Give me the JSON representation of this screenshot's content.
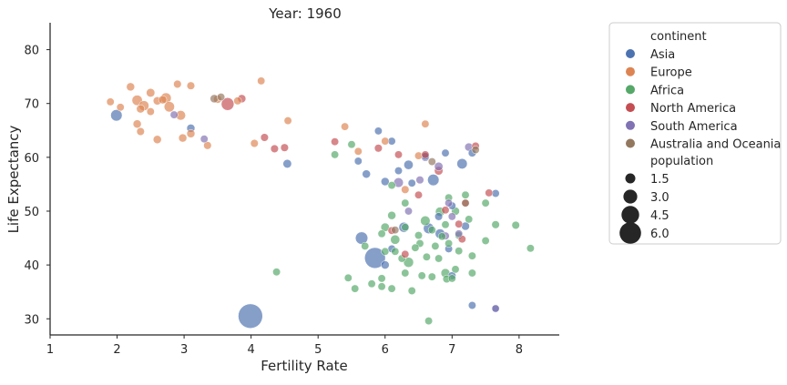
{
  "chart_data": {
    "type": "scatter",
    "title": "Year: 1960",
    "xlabel": "Fertility Rate",
    "ylabel": "Life Expectancy",
    "xlim": [
      1,
      8.6
    ],
    "ylim": [
      27,
      85
    ],
    "xticks": [
      1,
      2,
      3,
      4,
      5,
      6,
      7,
      8
    ],
    "yticks": [
      30,
      40,
      50,
      60,
      70,
      80
    ],
    "grid": false,
    "legend": {
      "placement": "outside-right",
      "hue_title": "continent",
      "size_title": "population",
      "size_entries": [
        {
          "label": "1.5",
          "value": 1.5
        },
        {
          "label": "3.0",
          "value": 3.0
        },
        {
          "label": "4.5",
          "value": 4.5
        },
        {
          "label": "6.0",
          "value": 6.0
        }
      ]
    },
    "series": [
      {
        "name": "Asia",
        "color": "#4c72b0",
        "points": [
          [
            3.99,
            30.5,
            6.6
          ],
          [
            5.85,
            41.3,
            4.3
          ],
          [
            5.65,
            45.0,
            0.9
          ],
          [
            1.99,
            67.8,
            0.7
          ],
          [
            6.65,
            46.8,
            0.5
          ],
          [
            6.72,
            55.8,
            0.7
          ],
          [
            7.15,
            58.8,
            0.45
          ],
          [
            6.35,
            58.6,
            0.3
          ],
          [
            6.28,
            47.0,
            0.4
          ],
          [
            6.82,
            45.8,
            0.35
          ],
          [
            4.54,
            58.8,
            0.2
          ],
          [
            5.72,
            56.9,
            0.15
          ],
          [
            6.0,
            40.0,
            0.15
          ],
          [
            6.6,
            60.2,
            0.12
          ],
          [
            7.3,
            60.8,
            0.12
          ],
          [
            6.1,
            63.0,
            0.1
          ],
          [
            6.8,
            49.0,
            0.12
          ],
          [
            7.0,
            51.0,
            0.1
          ],
          [
            7.65,
            53.3,
            0.1
          ],
          [
            7.2,
            47.2,
            0.15
          ],
          [
            6.9,
            60.8,
            0.1
          ],
          [
            6.4,
            55.2,
            0.1
          ],
          [
            6.2,
            57.5,
            0.1
          ],
          [
            5.6,
            59.3,
            0.1
          ],
          [
            5.9,
            64.9,
            0.1
          ],
          [
            3.1,
            65.4,
            0.15
          ],
          [
            6.1,
            43.0,
            0.1
          ],
          [
            7.0,
            38.0,
            0.12
          ],
          [
            7.3,
            32.5,
            0.1
          ],
          [
            7.65,
            31.9,
            0.1
          ],
          [
            6.0,
            55.5,
            0.15
          ],
          [
            6.95,
            43.0,
            0.1
          ]
        ]
      },
      {
        "name": "Europe",
        "color": "#dd8452",
        "points": [
          [
            2.3,
            70.6,
            0.45
          ],
          [
            2.73,
            71.0,
            0.5
          ],
          [
            2.78,
            69.4,
            0.45
          ],
          [
            2.4,
            69.6,
            0.4
          ],
          [
            2.95,
            67.8,
            0.35
          ],
          [
            2.2,
            73.1,
            0.15
          ],
          [
            2.5,
            72.0,
            0.2
          ],
          [
            2.35,
            69.0,
            0.15
          ],
          [
            2.6,
            70.5,
            0.15
          ],
          [
            2.9,
            73.6,
            0.12
          ],
          [
            3.1,
            73.3,
            0.12
          ],
          [
            4.15,
            74.2,
            0.1
          ],
          [
            1.9,
            70.3,
            0.1
          ],
          [
            2.05,
            69.3,
            0.1
          ],
          [
            2.5,
            68.5,
            0.1
          ],
          [
            2.68,
            70.7,
            0.15
          ],
          [
            2.6,
            63.3,
            0.15
          ],
          [
            2.98,
            63.6,
            0.15
          ],
          [
            2.35,
            64.8,
            0.12
          ],
          [
            3.35,
            62.2,
            0.12
          ],
          [
            3.1,
            64.4,
            0.15
          ],
          [
            2.3,
            66.2,
            0.15
          ],
          [
            3.5,
            70.8,
            0.15
          ],
          [
            3.8,
            70.5,
            0.12
          ],
          [
            4.55,
            66.8,
            0.1
          ],
          [
            4.05,
            62.6,
            0.12
          ],
          [
            5.4,
            65.7,
            0.1
          ],
          [
            6.6,
            66.2,
            0.1
          ],
          [
            6.0,
            63.0,
            0.1
          ],
          [
            5.6,
            61.1,
            0.1
          ],
          [
            6.5,
            60.3,
            0.1
          ],
          [
            6.3,
            54.0,
            0.12
          ]
        ]
      },
      {
        "name": "Africa",
        "color": "#55a868",
        "points": [
          [
            6.35,
            40.5,
            0.4
          ],
          [
            6.6,
            48.2,
            0.35
          ],
          [
            6.15,
            44.7,
            0.3
          ],
          [
            6.82,
            49.9,
            0.3
          ],
          [
            6.9,
            38.5,
            0.25
          ],
          [
            6.0,
            47.0,
            0.2
          ],
          [
            5.95,
            36.0,
            0.1
          ],
          [
            6.1,
            35.6,
            0.1
          ],
          [
            6.4,
            35.2,
            0.1
          ],
          [
            6.65,
            29.6,
            0.1
          ],
          [
            5.45,
            37.6,
            0.1
          ],
          [
            5.55,
            35.6,
            0.1
          ],
          [
            5.8,
            36.5,
            0.1
          ],
          [
            5.95,
            37.5,
            0.1
          ],
          [
            6.3,
            38.5,
            0.1
          ],
          [
            6.55,
            38.0,
            0.1
          ],
          [
            6.7,
            37.8,
            0.1
          ],
          [
            7.0,
            37.5,
            0.1
          ],
          [
            7.3,
            38.5,
            0.1
          ],
          [
            7.05,
            39.2,
            0.1
          ],
          [
            6.92,
            37.4,
            0.12
          ],
          [
            6.25,
            41.2,
            0.1
          ],
          [
            6.0,
            42.5,
            0.1
          ],
          [
            6.15,
            42.5,
            0.1
          ],
          [
            6.75,
            43.5,
            0.1
          ],
          [
            6.95,
            44.0,
            0.1
          ],
          [
            7.1,
            45.5,
            0.1
          ],
          [
            7.5,
            44.5,
            0.1
          ],
          [
            7.65,
            47.5,
            0.12
          ],
          [
            7.95,
            47.4,
            0.12
          ],
          [
            8.17,
            43.1,
            0.1
          ],
          [
            7.3,
            41.7,
            0.1
          ],
          [
            7.25,
            48.5,
            0.1
          ],
          [
            7.05,
            50.0,
            0.15
          ],
          [
            7.2,
            53.0,
            0.1
          ],
          [
            6.3,
            51.5,
            0.1
          ],
          [
            6.1,
            49.2,
            0.15
          ],
          [
            6.3,
            47.0,
            0.1
          ],
          [
            6.5,
            45.5,
            0.1
          ],
          [
            6.7,
            46.5,
            0.1
          ],
          [
            6.85,
            45.3,
            0.1
          ],
          [
            6.9,
            47.5,
            0.1
          ],
          [
            6.95,
            52.5,
            0.1
          ],
          [
            7.5,
            51.5,
            0.1
          ],
          [
            5.25,
            60.5,
            0.1
          ],
          [
            4.38,
            38.7,
            0.1
          ],
          [
            5.5,
            62.4,
            0.1
          ],
          [
            6.1,
            54.8,
            0.1
          ],
          [
            6.8,
            41.2,
            0.1
          ],
          [
            6.52,
            44.0,
            0.1
          ],
          [
            6.45,
            43.2,
            0.1
          ],
          [
            5.95,
            45.8,
            0.1
          ],
          [
            6.62,
            41.5,
            0.1
          ],
          [
            7.1,
            42.6,
            0.1
          ],
          [
            5.7,
            43.5,
            0.1
          ]
        ]
      },
      {
        "name": "North America",
        "color": "#c44e52",
        "points": [
          [
            3.65,
            69.9,
            1.0
          ],
          [
            6.8,
            57.5,
            0.2
          ],
          [
            3.86,
            70.9,
            0.15
          ],
          [
            4.2,
            63.7,
            0.12
          ],
          [
            4.35,
            61.6,
            0.12
          ],
          [
            4.5,
            61.8,
            0.12
          ],
          [
            5.9,
            61.7,
            0.12
          ],
          [
            6.2,
            60.5,
            0.1
          ],
          [
            6.6,
            60.5,
            0.1
          ],
          [
            7.35,
            62.1,
            0.1
          ],
          [
            7.55,
            53.4,
            0.1
          ],
          [
            7.2,
            51.5,
            0.1
          ],
          [
            6.1,
            46.4,
            0.1
          ],
          [
            6.9,
            50.2,
            0.1
          ],
          [
            5.25,
            62.9,
            0.1
          ],
          [
            6.3,
            42.0,
            0.1
          ],
          [
            7.15,
            44.8,
            0.1
          ],
          [
            7.1,
            47.6,
            0.1
          ],
          [
            6.5,
            53.0,
            0.1
          ]
        ]
      },
      {
        "name": "South America",
        "color": "#8172b3",
        "points": [
          [
            6.2,
            55.3,
            0.35
          ],
          [
            6.8,
            58.3,
            0.2
          ],
          [
            7.25,
            61.9,
            0.15
          ],
          [
            6.35,
            50.0,
            0.1
          ],
          [
            6.6,
            60.0,
            0.15
          ],
          [
            6.52,
            55.8,
            0.12
          ],
          [
            6.95,
            51.5,
            0.1
          ],
          [
            7.0,
            49.0,
            0.1
          ],
          [
            7.1,
            45.8,
            0.1
          ],
          [
            6.9,
            45.4,
            0.12
          ],
          [
            2.85,
            67.9,
            0.1
          ],
          [
            3.3,
            63.4,
            0.1
          ],
          [
            7.65,
            31.9,
            0.08
          ]
        ]
      },
      {
        "name": "Australia and Oceania",
        "color": "#937860",
        "points": [
          [
            3.45,
            70.9,
            0.15
          ],
          [
            3.55,
            71.2,
            0.1
          ],
          [
            7.35,
            61.4,
            0.1
          ],
          [
            6.7,
            59.2,
            0.1
          ],
          [
            7.2,
            51.5,
            0.1
          ],
          [
            6.15,
            46.5,
            0.1
          ]
        ]
      }
    ]
  }
}
